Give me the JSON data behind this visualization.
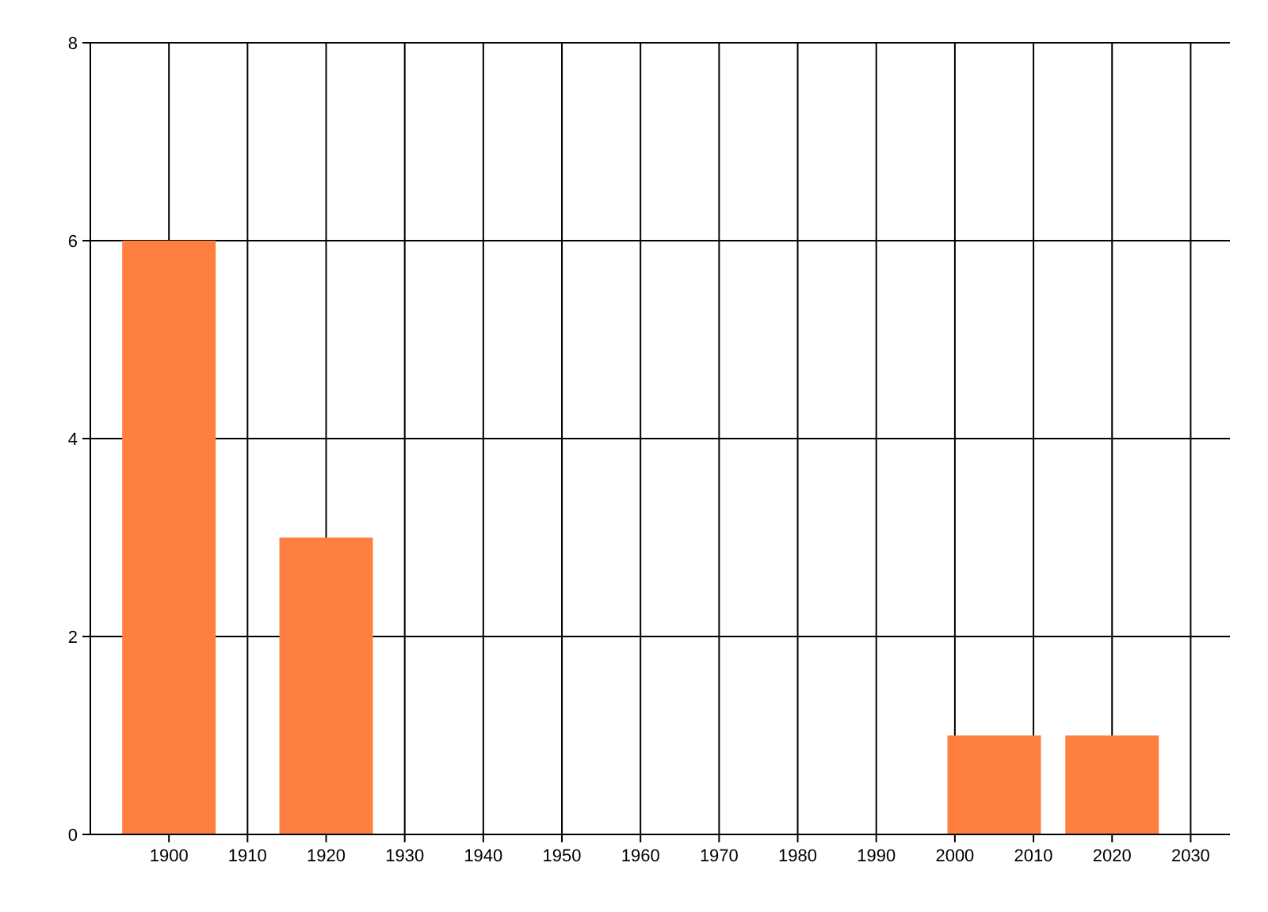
{
  "chart_data": {
    "type": "bar",
    "x": [
      1900,
      1920,
      2005,
      2020
    ],
    "values": [
      6,
      3,
      1,
      1
    ],
    "color": "#ff7f40",
    "xlim": [
      1890,
      2035
    ],
    "xticks": [
      1900,
      1910,
      1920,
      1930,
      1940,
      1950,
      1960,
      1970,
      1980,
      1990,
      2000,
      2010,
      2020,
      2030
    ],
    "ylim": [
      0,
      8
    ],
    "yticks": [
      0,
      2,
      4,
      6,
      8
    ],
    "grid": true
  }
}
